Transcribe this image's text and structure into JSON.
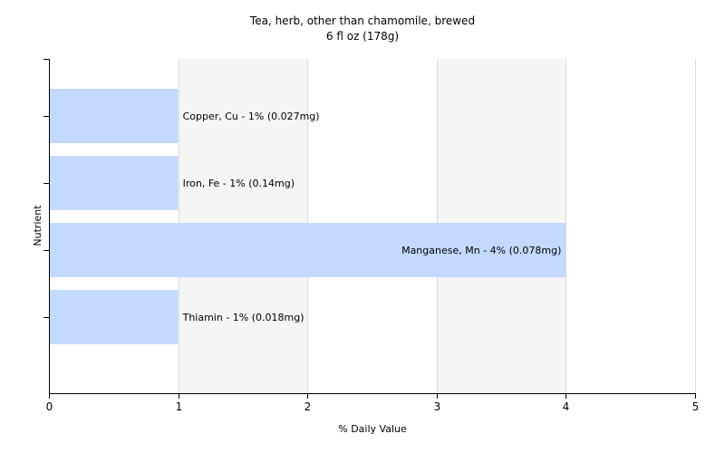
{
  "chart_data": {
    "type": "bar",
    "orientation": "horizontal",
    "title": "Tea, herb, other than chamomile, brewed",
    "subtitle": "6 fl oz (178g)",
    "xlabel": "% Daily Value",
    "ylabel": "Nutrient",
    "xlim": [
      0,
      5
    ],
    "xticks": [
      "0",
      "1",
      "2",
      "3",
      "4",
      "5"
    ],
    "grid": true,
    "bar_color": "#c3d9ff",
    "categories": [
      "Copper, Cu",
      "Iron, Fe",
      "Manganese, Mn",
      "Thiamin"
    ],
    "values": [
      1,
      1,
      4,
      1
    ],
    "data_labels": [
      "Copper, Cu - 1% (0.027mg)",
      "Iron, Fe - 1% (0.14mg)",
      "Manganese, Mn - 4% (0.078mg)",
      "Thiamin - 1% (0.018mg)"
    ]
  }
}
